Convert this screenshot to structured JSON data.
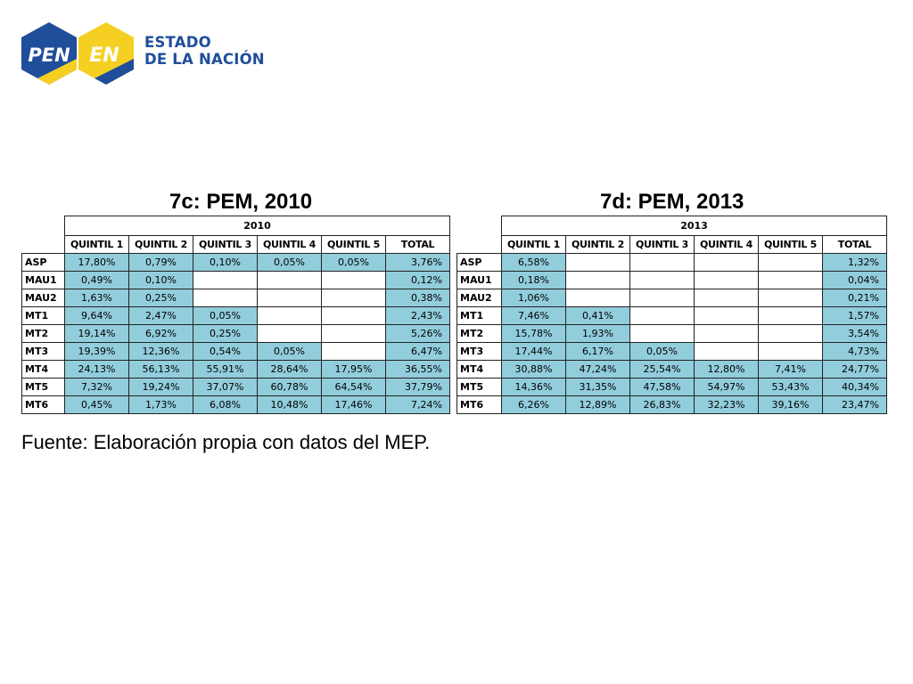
{
  "logo": {
    "pen_text": "PEN",
    "en_text": "EN",
    "line1": "ESTADO",
    "line2": "DE LA NACIÓN",
    "colors": {
      "blue": "#1f4e9a",
      "yellow": "#f5d023"
    }
  },
  "tables": [
    {
      "title": "7c: PEM, 2010",
      "year": "2010",
      "columns": [
        "QUINTIL 1",
        "QUINTIL 2",
        "QUINTIL 3",
        "QUINTIL 4",
        "QUINTIL 5",
        "TOTAL"
      ],
      "rows": [
        {
          "label": "ASP",
          "values": [
            "17,80%",
            "0,79%",
            "0,10%",
            "0,05%",
            "0,05%",
            "3,76%"
          ]
        },
        {
          "label": "MAU1",
          "values": [
            "0,49%",
            "0,10%",
            "",
            "",
            "",
            "0,12%"
          ]
        },
        {
          "label": "MAU2",
          "values": [
            "1,63%",
            "0,25%",
            "",
            "",
            "",
            "0,38%"
          ]
        },
        {
          "label": "MT1",
          "values": [
            "9,64%",
            "2,47%",
            "0,05%",
            "",
            "",
            "2,43%"
          ]
        },
        {
          "label": "MT2",
          "values": [
            "19,14%",
            "6,92%",
            "0,25%",
            "",
            "",
            "5,26%"
          ]
        },
        {
          "label": "MT3",
          "values": [
            "19,39%",
            "12,36%",
            "0,54%",
            "0,05%",
            "",
            "6,47%"
          ]
        },
        {
          "label": "MT4",
          "values": [
            "24,13%",
            "56,13%",
            "55,91%",
            "28,64%",
            "17,95%",
            "36,55%"
          ]
        },
        {
          "label": "MT5",
          "values": [
            "7,32%",
            "19,24%",
            "37,07%",
            "60,78%",
            "64,54%",
            "37,79%"
          ]
        },
        {
          "label": "MT6",
          "values": [
            "0,45%",
            "1,73%",
            "6,08%",
            "10,48%",
            "17,46%",
            "7,24%"
          ]
        }
      ]
    },
    {
      "title": "7d: PEM, 2013",
      "year": "2013",
      "columns": [
        "QUINTIL 1",
        "QUINTIL 2",
        "QUINTIL 3",
        "QUINTIL 4",
        "QUINTIL 5",
        "TOTAL"
      ],
      "rows": [
        {
          "label": "ASP",
          "values": [
            "6,58%",
            "",
            "",
            "",
            "",
            "1,32%"
          ]
        },
        {
          "label": "MAU1",
          "values": [
            "0,18%",
            "",
            "",
            "",
            "",
            "0,04%"
          ]
        },
        {
          "label": "MAU2",
          "values": [
            "1,06%",
            "",
            "",
            "",
            "",
            "0,21%"
          ]
        },
        {
          "label": "MT1",
          "values": [
            "7,46%",
            "0,41%",
            "",
            "",
            "",
            "1,57%"
          ]
        },
        {
          "label": "MT2",
          "values": [
            "15,78%",
            "1,93%",
            "",
            "",
            "",
            "3,54%"
          ]
        },
        {
          "label": "MT3",
          "values": [
            "17,44%",
            "6,17%",
            "0,05%",
            "",
            "",
            "4,73%"
          ]
        },
        {
          "label": "MT4",
          "values": [
            "30,88%",
            "47,24%",
            "25,54%",
            "12,80%",
            "7,41%",
            "24,77%"
          ]
        },
        {
          "label": "MT5",
          "values": [
            "14,36%",
            "31,35%",
            "47,58%",
            "54,97%",
            "53,43%",
            "40,34%"
          ]
        },
        {
          "label": "MT6",
          "values": [
            "6,26%",
            "12,89%",
            "26,83%",
            "32,23%",
            "39,16%",
            "23,47%"
          ]
        }
      ]
    }
  ],
  "cell_color": "#92cddc",
  "source": "Fuente: Elaboración propia con datos del MEP."
}
